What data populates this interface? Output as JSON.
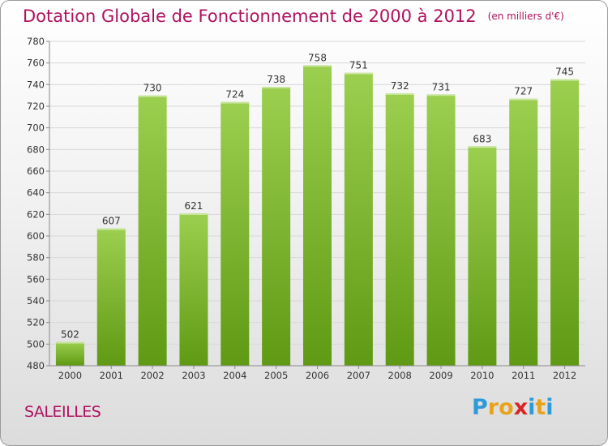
{
  "header": {
    "title": "Dotation Globale de Fonctionnement de 2000 à 2012",
    "unit": "(en milliers d'€)"
  },
  "footer": {
    "commune": "SALEILLES",
    "brand_letters": [
      "P",
      "r",
      "o",
      "x",
      "i",
      "t",
      "i"
    ],
    "brand_colors": [
      "#2e9ad8",
      "#e8a31c",
      "#e8a31c",
      "#d82525",
      "#2e9ad8",
      "#e8a31c",
      "#2e9ad8"
    ]
  },
  "colors": {
    "title": "#b0115f",
    "bar_light": "#9ccf4f",
    "bar_dark": "#5f9a14",
    "grid": "#d8d8d8",
    "label": "#333333"
  },
  "chart_data": {
    "type": "bar",
    "categories": [
      "2000",
      "2001",
      "2002",
      "2003",
      "2004",
      "2005",
      "2006",
      "2007",
      "2008",
      "2009",
      "2010",
      "2011",
      "2012"
    ],
    "values": [
      502,
      607,
      730,
      621,
      724,
      738,
      758,
      751,
      732,
      731,
      683,
      727,
      745
    ],
    "ylim": [
      480,
      780
    ],
    "yticks": [
      480,
      500,
      520,
      540,
      560,
      580,
      600,
      620,
      640,
      660,
      680,
      700,
      720,
      740,
      760,
      780
    ],
    "grid": true,
    "data_labels": true
  }
}
